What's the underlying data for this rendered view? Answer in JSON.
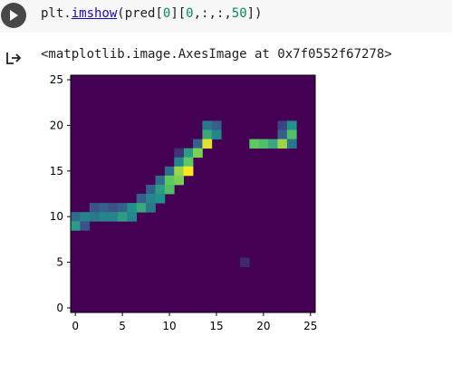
{
  "cell": {
    "code_prefix": "plt.",
    "code_fn": "imshow",
    "code_args_a": "(pred[",
    "code_num_0": "0",
    "code_args_b": "][",
    "code_num_1": "0",
    "code_args_c": ",:,:,",
    "code_num_2": "50",
    "code_args_d": "])",
    "run_icon": "play-icon"
  },
  "output": {
    "icon": "output-arrow-icon",
    "text": "<matplotlib.image.AxesImage at 0x7f0552f67278>"
  },
  "chart_data": {
    "type": "heatmap",
    "colormap": "viridis",
    "shape": [
      26,
      26
    ],
    "xlim": [
      -0.5,
      25.5
    ],
    "ylim": [
      25.5,
      -0.5
    ],
    "xticks": [
      0,
      5,
      10,
      15,
      20,
      25
    ],
    "yticks": [
      0,
      5,
      10,
      15,
      20,
      25
    ],
    "background_value": 0,
    "cells": [
      {
        "row": 5,
        "col": 14,
        "v": 0.4
      },
      {
        "row": 5,
        "col": 15,
        "v": 0.3
      },
      {
        "row": 5,
        "col": 22,
        "v": 0.2
      },
      {
        "row": 5,
        "col": 23,
        "v": 0.5
      },
      {
        "row": 6,
        "col": 14,
        "v": 0.6
      },
      {
        "row": 6,
        "col": 15,
        "v": 0.45
      },
      {
        "row": 6,
        "col": 22,
        "v": 0.3
      },
      {
        "row": 6,
        "col": 23,
        "v": 0.7
      },
      {
        "row": 7,
        "col": 13,
        "v": 0.3
      },
      {
        "row": 7,
        "col": 14,
        "v": 0.95
      },
      {
        "row": 7,
        "col": 19,
        "v": 0.75
      },
      {
        "row": 7,
        "col": 20,
        "v": 0.7
      },
      {
        "row": 7,
        "col": 21,
        "v": 0.6
      },
      {
        "row": 7,
        "col": 22,
        "v": 0.85
      },
      {
        "row": 7,
        "col": 23,
        "v": 0.4
      },
      {
        "row": 8,
        "col": 12,
        "v": 0.55
      },
      {
        "row": 8,
        "col": 13,
        "v": 0.8
      },
      {
        "row": 8,
        "col": 11,
        "v": 0.15
      },
      {
        "row": 9,
        "col": 11,
        "v": 0.45
      },
      {
        "row": 9,
        "col": 12,
        "v": 0.75
      },
      {
        "row": 10,
        "col": 10,
        "v": 0.35
      },
      {
        "row": 10,
        "col": 11,
        "v": 0.85
      },
      {
        "row": 10,
        "col": 12,
        "v": 1.0
      },
      {
        "row": 11,
        "col": 9,
        "v": 0.35
      },
      {
        "row": 11,
        "col": 10,
        "v": 0.75
      },
      {
        "row": 11,
        "col": 11,
        "v": 0.8
      },
      {
        "row": 12,
        "col": 8,
        "v": 0.3
      },
      {
        "row": 12,
        "col": 9,
        "v": 0.55
      },
      {
        "row": 12,
        "col": 10,
        "v": 0.7
      },
      {
        "row": 13,
        "col": 7,
        "v": 0.3
      },
      {
        "row": 13,
        "col": 8,
        "v": 0.45
      },
      {
        "row": 13,
        "col": 9,
        "v": 0.5
      },
      {
        "row": 14,
        "col": 2,
        "v": 0.25
      },
      {
        "row": 14,
        "col": 3,
        "v": 0.3
      },
      {
        "row": 14,
        "col": 4,
        "v": 0.25
      },
      {
        "row": 14,
        "col": 5,
        "v": 0.3
      },
      {
        "row": 14,
        "col": 6,
        "v": 0.5
      },
      {
        "row": 14,
        "col": 7,
        "v": 0.6
      },
      {
        "row": 14,
        "col": 8,
        "v": 0.4
      },
      {
        "row": 15,
        "col": 0,
        "v": 0.35
      },
      {
        "row": 15,
        "col": 1,
        "v": 0.45
      },
      {
        "row": 15,
        "col": 2,
        "v": 0.4
      },
      {
        "row": 15,
        "col": 3,
        "v": 0.45
      },
      {
        "row": 15,
        "col": 4,
        "v": 0.45
      },
      {
        "row": 15,
        "col": 5,
        "v": 0.55
      },
      {
        "row": 15,
        "col": 6,
        "v": 0.45
      },
      {
        "row": 16,
        "col": 0,
        "v": 0.55
      },
      {
        "row": 16,
        "col": 1,
        "v": 0.25
      },
      {
        "row": 20,
        "col": 18,
        "v": 0.12
      }
    ]
  }
}
